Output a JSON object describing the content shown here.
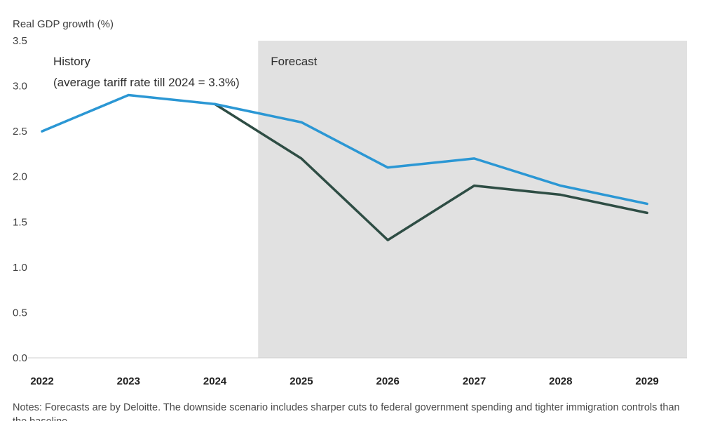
{
  "chart_data": {
    "type": "line",
    "ylabel": "Real GDP growth (%)",
    "ylim": [
      0.0,
      3.5
    ],
    "yticks": [
      "0.0",
      "0.5",
      "1.0",
      "1.5",
      "2.0",
      "2.5",
      "3.0",
      "3.5"
    ],
    "categories": [
      "2022",
      "2023",
      "2024",
      "2025",
      "2026",
      "2027",
      "2028",
      "2029"
    ],
    "grid": false,
    "regions": {
      "history_label": "History",
      "history_sublabel": "(average tariff rate till 2024 = 3.3%)",
      "forecast_label": "Forecast",
      "forecast_start_between": [
        "2024",
        "2025"
      ],
      "forecast_shade_color": "#e1e1e1"
    },
    "series": [
      {
        "color": "#2b97d4",
        "x": [
          "2022",
          "2023",
          "2024",
          "2025",
          "2026",
          "2027",
          "2028",
          "2029"
        ],
        "values": [
          2.5,
          2.9,
          2.8,
          2.6,
          2.1,
          2.2,
          1.9,
          1.7
        ]
      },
      {
        "color": "#2e4d44",
        "x": [
          "2024",
          "2025",
          "2026",
          "2027",
          "2028",
          "2029"
        ],
        "values": [
          2.8,
          2.2,
          1.3,
          1.9,
          1.8,
          1.6
        ]
      }
    ],
    "notes": "Notes: Forecasts are by Deloitte. The downside scenario includes sharper cuts to federal government spending and tighter immigration controls than the baseline."
  }
}
